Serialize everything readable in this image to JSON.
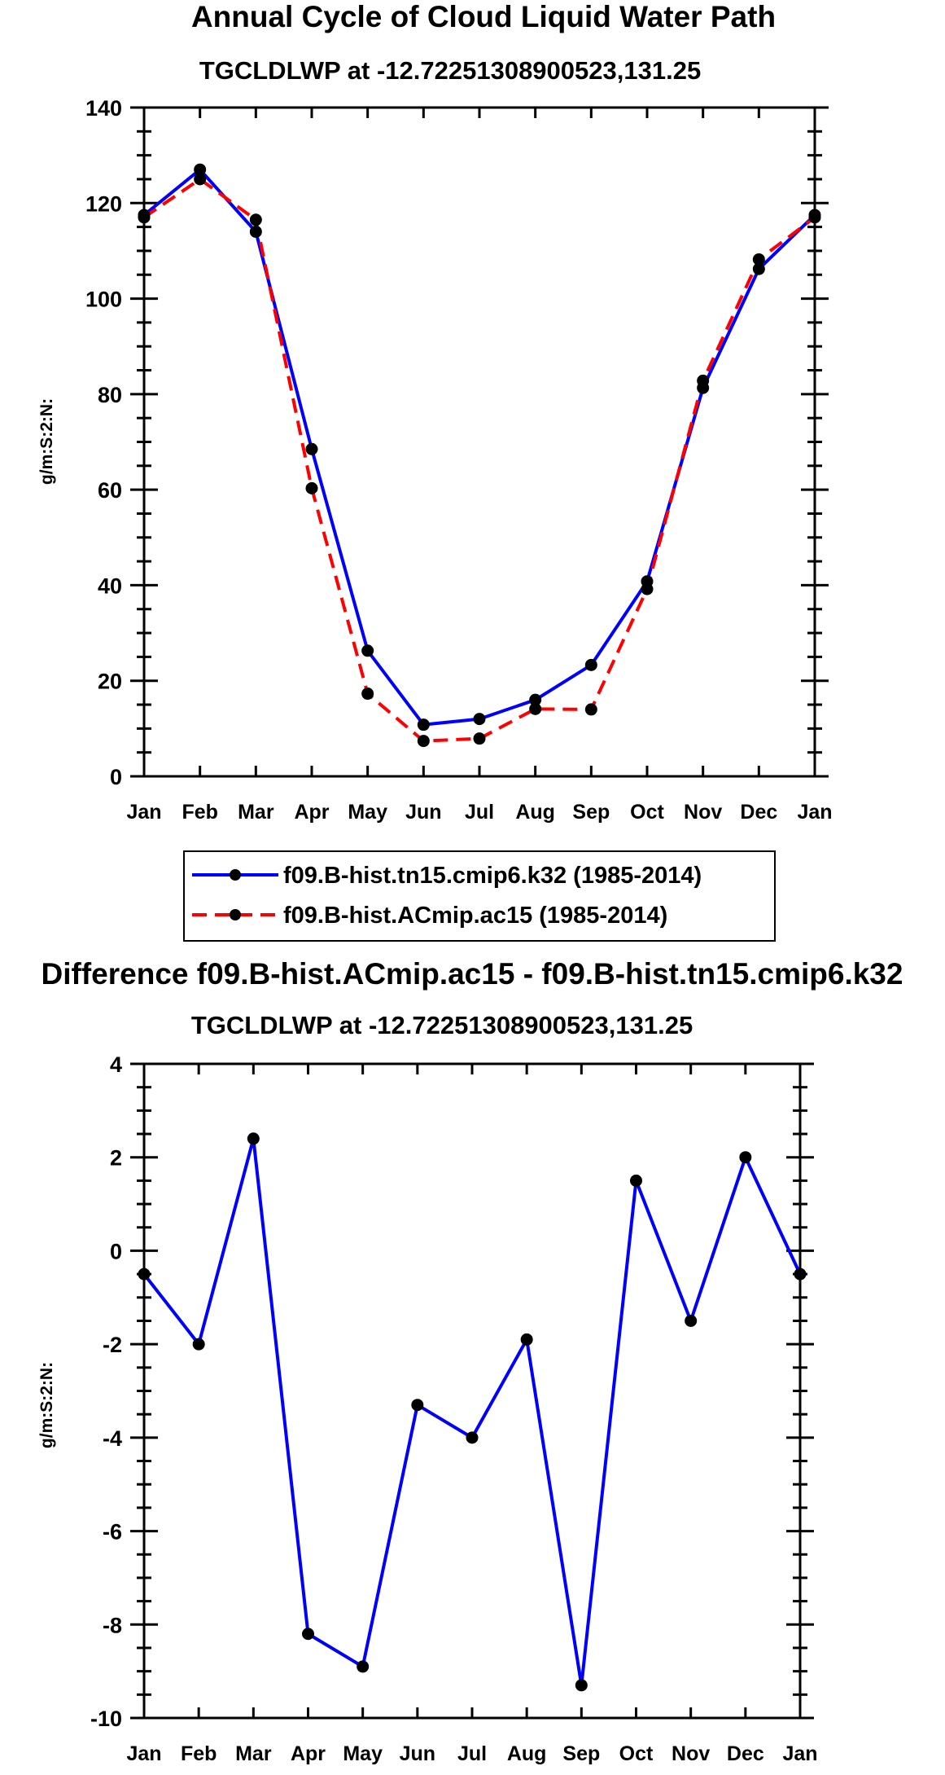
{
  "figure": {
    "main_title": "Annual Cycle of Cloud Liquid Water Path",
    "diff_title": "Difference f09.B-hist.ACmip.ac15 - f09.B-hist.tn15.cmip6.k32"
  },
  "chart_data": [
    {
      "type": "line",
      "title": "TGCLDLWP at -12.72251308900523,131.25",
      "xlabel": "",
      "ylabel": "g/m:S:2:N:",
      "categories": [
        "Jan",
        "Feb",
        "Mar",
        "Apr",
        "May",
        "Jun",
        "Jul",
        "Aug",
        "Sep",
        "Oct",
        "Nov",
        "Dec",
        "Jan"
      ],
      "ylim": [
        0,
        140
      ],
      "yticks": [
        0,
        20,
        40,
        60,
        80,
        100,
        120,
        140
      ],
      "ytick_labels": [
        "0",
        "20",
        "40",
        "60",
        "80",
        "100",
        "120",
        "140"
      ],
      "series": [
        {
          "name": "f09.B-hist.tn15.cmip6.k32 (1985-2014)",
          "color": "#0000ff",
          "dash": "solid",
          "values": [
            117.5,
            127.0,
            114.0,
            68.5,
            26.3,
            10.8,
            12.0,
            16.0,
            23.3,
            40.8,
            81.3,
            106.2,
            117.5
          ]
        },
        {
          "name": "f09.B-hist.ACmip.ac15 (1985-2014)",
          "color": "#ff0000",
          "dash": "dashed",
          "values": [
            117.0,
            125.0,
            116.5,
            60.3,
            17.3,
            7.4,
            7.9,
            14.1,
            14.0,
            39.2,
            82.8,
            108.2,
            117.0
          ]
        }
      ]
    },
    {
      "type": "line",
      "title": "TGCLDLWP at -12.72251308900523,131.25",
      "xlabel": "",
      "ylabel": "g/m:S:2:N:",
      "categories": [
        "Jan",
        "Feb",
        "Mar",
        "Apr",
        "May",
        "Jun",
        "Jul",
        "Aug",
        "Sep",
        "Oct",
        "Nov",
        "Dec",
        "Jan"
      ],
      "ylim": [
        -10,
        4
      ],
      "yticks": [
        -10,
        -8,
        -6,
        -4,
        -2,
        0,
        2,
        4
      ],
      "ytick_labels": [
        "-10",
        "-8",
        "-6",
        "-4",
        "-2",
        "0",
        "2",
        "4"
      ],
      "series": [
        {
          "name": "Difference",
          "color": "#0000ff",
          "dash": "solid",
          "values": [
            -0.5,
            -2.0,
            2.4,
            -8.2,
            -8.9,
            -3.3,
            -4.0,
            -1.9,
            -9.3,
            1.5,
            -1.5,
            2.0,
            -0.5
          ]
        }
      ]
    }
  ]
}
